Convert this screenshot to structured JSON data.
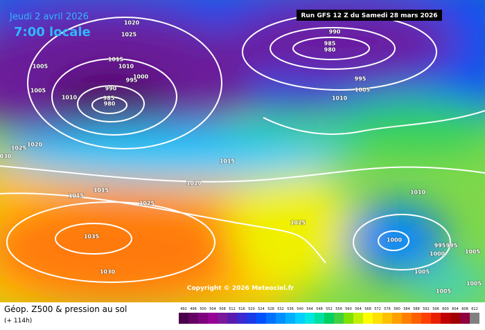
{
  "header": {
    "date": "Jeudi 2 avril 2026",
    "time": "7:00 locale",
    "run": "Run GFS 12 Z du Samedi 28 mars 2026"
  },
  "isobar_labels": [
    "1020",
    "1025",
    "1015",
    "1010",
    "995",
    "1000",
    "1005",
    "1005",
    "1010",
    "990",
    "985",
    "980",
    "1025",
    "1020",
    "030",
    "1015",
    "1020",
    "1015",
    "1015",
    "1025",
    "1025",
    "1035",
    "1030",
    "990",
    "985",
    "980",
    "995",
    "1005",
    "1010",
    "1010",
    "1000",
    "995",
    "995",
    "1000",
    "1005",
    "1005",
    "1005",
    "1005"
  ],
  "copyright": "Copyright © 2026 Meteociel.fr",
  "footer": {
    "title": "Géop. Z500 & pression au sol",
    "lead": "(+ 114h)"
  },
  "colorbar": {
    "ticks": [
      492,
      496,
      500,
      504,
      508,
      512,
      516,
      520,
      524,
      528,
      532,
      536,
      540,
      544,
      548,
      552,
      556,
      560,
      564,
      568,
      572,
      576,
      580,
      584,
      588,
      592,
      596,
      600,
      604,
      608,
      612
    ],
    "colors": [
      "#4b004b",
      "#640064",
      "#7d007d",
      "#960096",
      "#7a1a9a",
      "#5a1ab0",
      "#3a2ad0",
      "#1a3ae8",
      "#0050ff",
      "#0070ff",
      "#0090ff",
      "#00b0ff",
      "#00d0ff",
      "#00e8e0",
      "#00e0a0",
      "#00d060",
      "#40d040",
      "#80e000",
      "#c0f000",
      "#ffff00",
      "#ffe000",
      "#ffc000",
      "#ffa000",
      "#ff8000",
      "#ff6000",
      "#ff4000",
      "#e82000",
      "#c00000",
      "#a00000",
      "#900040",
      "#808080"
    ]
  }
}
